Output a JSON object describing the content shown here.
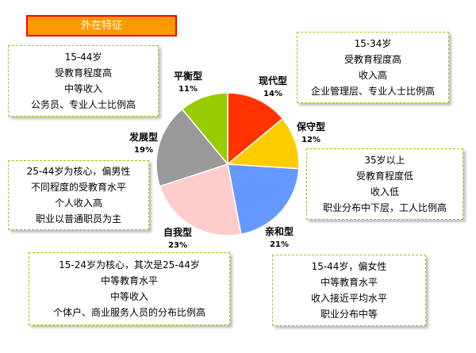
{
  "header": {
    "title": "外在特征"
  },
  "chart_data": {
    "type": "pie",
    "slices": [
      {
        "name": "现代型",
        "value": 14,
        "label": "14%",
        "color": "#ff3300"
      },
      {
        "name": "保守型",
        "value": 12,
        "label": "12%",
        "color": "#ffcc00"
      },
      {
        "name": "亲和型",
        "value": 21,
        "label": "21%",
        "color": "#6699ff"
      },
      {
        "name": "自我型",
        "value": 23,
        "label": "23%",
        "color": "#ffcccc"
      },
      {
        "name": "发展型",
        "value": 19,
        "label": "19%",
        "color": "#999999"
      },
      {
        "name": "平衡型",
        "value": 11,
        "label": "11%",
        "color": "#99cc00"
      }
    ]
  },
  "boxes": {
    "balance": [
      "15-44岁",
      "受教育程度高",
      "中等收入",
      "公务员、专业人士比例高"
    ],
    "modern": [
      "15-34岁",
      "受教育程度高",
      "收入高",
      "企业管理层、专业人士比例高"
    ],
    "develop": [
      "25-44岁为核心，偏男性",
      "不同程度的受教育水平",
      "个人收入高",
      "职业以普通职员为主"
    ],
    "conservative": [
      "35岁以上",
      "受教育程度低",
      "收入低",
      "职业分布中下层，工人比例高"
    ],
    "self": [
      "15-24岁为核心，其次是25-44岁",
      "中等教育水平",
      "中等收入",
      "个体户、商业服务人员的分布比例高"
    ],
    "affinity": [
      "15-44岁，偏女性",
      "中等教育水平",
      "收入接近平均水平",
      "职业分布中等"
    ]
  }
}
